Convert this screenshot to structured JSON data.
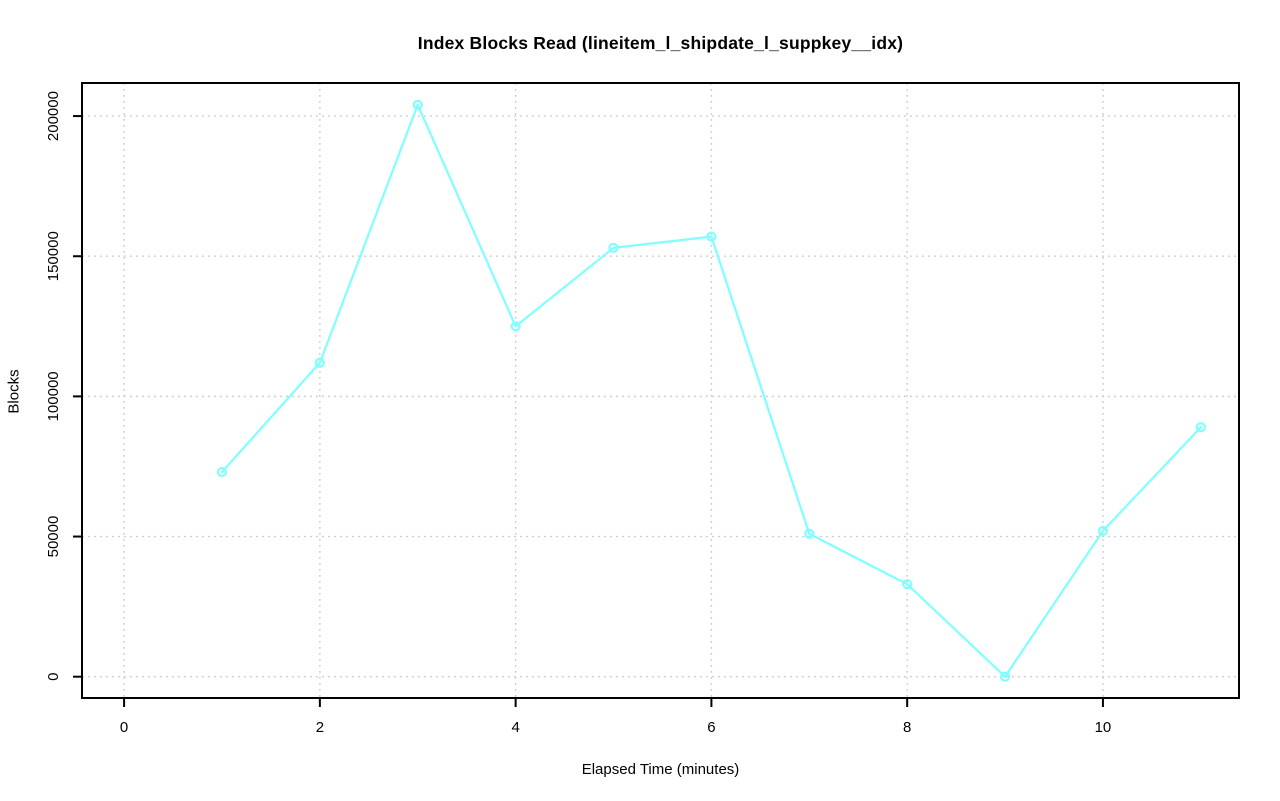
{
  "chart_data": {
    "type": "line",
    "title": "Index Blocks Read (lineitem_l_shipdate_l_suppkey__idx)",
    "xlabel": "Elapsed Time (minutes)",
    "ylabel": "Blocks",
    "x": [
      1,
      2,
      3,
      4,
      5,
      6,
      7,
      8,
      9,
      10,
      11
    ],
    "series": [
      {
        "name": "Blocks",
        "values": [
          73000,
          112000,
          204000,
          125000,
          153000,
          157000,
          51000,
          33000,
          0,
          52000,
          89000
        ]
      }
    ],
    "xticks": [
      0,
      2,
      4,
      6,
      8,
      10
    ],
    "yticks": [
      0,
      50000,
      100000,
      150000,
      200000
    ],
    "xlim": [
      -0.43,
      11.39
    ],
    "ylim": [
      -7600,
      211800
    ],
    "grid": true,
    "grid_style": "dotted",
    "legend": "none",
    "marker": "open-circle",
    "colors": {
      "line": "#7fffff",
      "grid": "#c9c9c9",
      "axis": "#000000",
      "text": "#000000",
      "background": "#ffffff"
    }
  }
}
